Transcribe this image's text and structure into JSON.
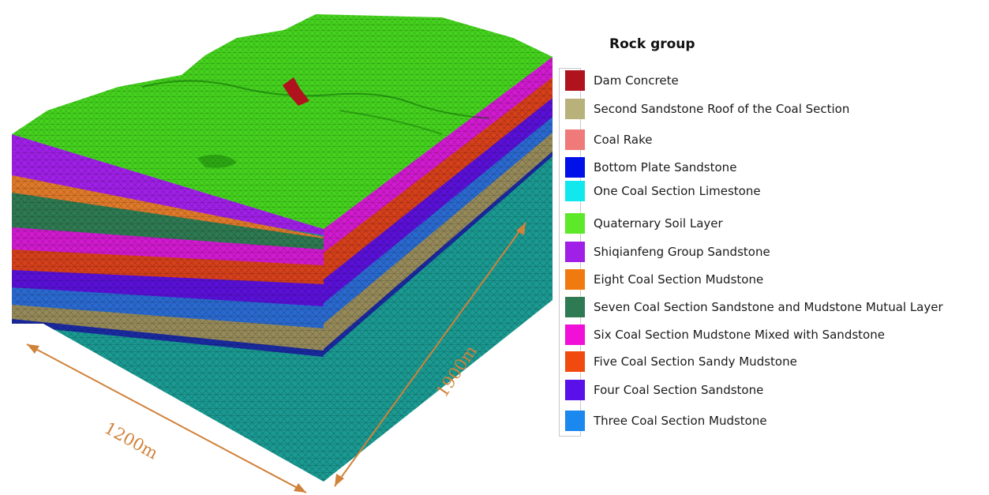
{
  "legend": {
    "title": "Rock group",
    "items": [
      {
        "label": "Dam Concrete",
        "color": "#b0121e"
      },
      {
        "label": "Second Sandstone Roof of the Coal Section",
        "color": "#b8b27a"
      },
      {
        "label": "Coal Rake",
        "color": "#f07a7a"
      },
      {
        "label": "Bottom Plate Sandstone",
        "color": "#0010e8"
      },
      {
        "label": "One Coal Section Limestone",
        "color": "#10e8ee"
      },
      {
        "label": "Quaternary Soil Layer",
        "color": "#5ee82a"
      },
      {
        "label": "Shiqianfeng Group Sandstone",
        "color": "#a020e8"
      },
      {
        "label": "Eight Coal Section Mudstone",
        "color": "#f07a10"
      },
      {
        "label": "Seven Coal Section  Sandstone and Mudstone Mutual Layer",
        "color": "#2e7a52"
      },
      {
        "label": "Six Coal Section Mudstone Mixed with Sandstone",
        "color": "#f010d8"
      },
      {
        "label": "Five Coal Section Sandy Mudstone",
        "color": "#f04a10"
      },
      {
        "label": "Four Coal Section Sandstone",
        "color": "#5a10e8"
      },
      {
        "label": "Three Coal Section Mudstone",
        "color": "#1a88ee"
      }
    ]
  },
  "dimensions": {
    "width_label": "1200m",
    "length_label": "1900m",
    "arrow_color": "#d0823a"
  }
}
